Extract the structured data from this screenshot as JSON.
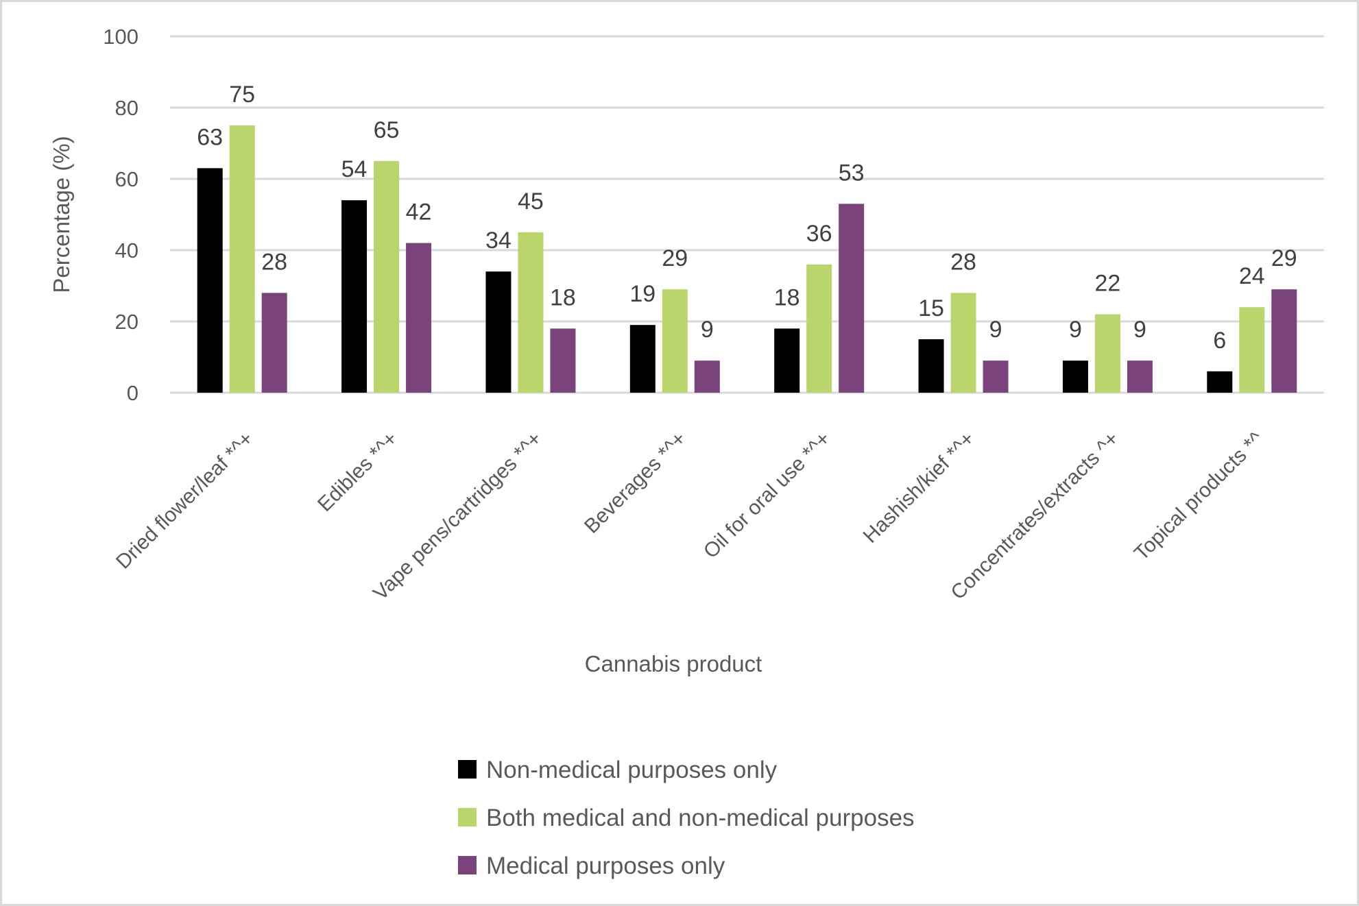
{
  "chart_data": {
    "type": "bar",
    "title": "",
    "xlabel": "Cannabis product",
    "ylabel": "Percentage (%)",
    "ylim": [
      0,
      100
    ],
    "yticks": [
      0,
      20,
      40,
      60,
      80,
      100
    ],
    "grid": true,
    "legend_position": "bottom",
    "categories": [
      "Dried flower/leaf *^+",
      "Edibles *^+",
      "Vape pens/cartridges *^+",
      "Beverages *^+",
      "Oil for oral use *^+",
      "Hashish/kief *^+",
      "Concentrates/extracts ^+",
      "Topical products *^"
    ],
    "series": [
      {
        "name": "Non-medical purposes only",
        "color": "#000000",
        "values": [
          63,
          54,
          34,
          19,
          18,
          15,
          9,
          6
        ]
      },
      {
        "name": "Both medical and non-medical purposes",
        "color": "#bbd56d",
        "values": [
          75,
          65,
          45,
          29,
          36,
          28,
          22,
          24
        ]
      },
      {
        "name": "Medical purposes only",
        "color": "#7a437b",
        "values": [
          28,
          42,
          18,
          9,
          53,
          9,
          9,
          29
        ]
      }
    ],
    "data_labels": true
  }
}
